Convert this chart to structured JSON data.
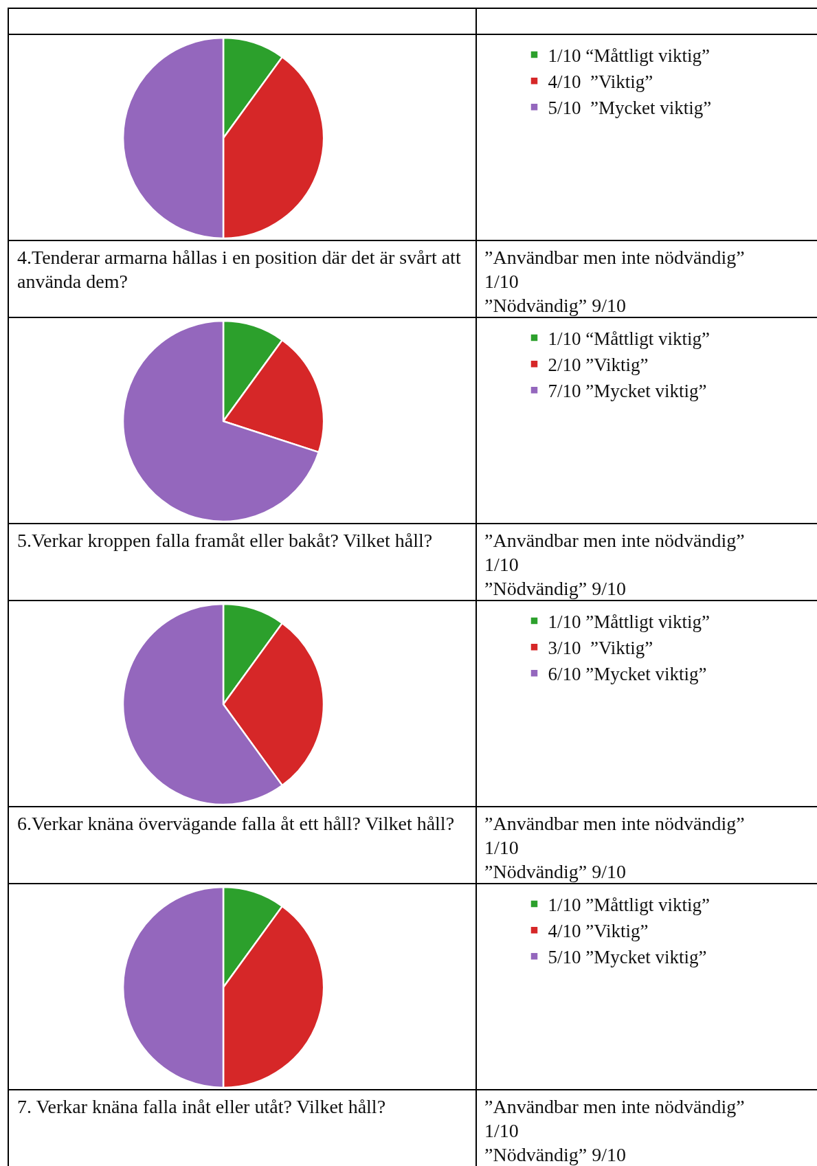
{
  "chart_data": [
    {
      "type": "pie",
      "categories": [
        "1/10 “Måttligt viktig”",
        "4/10  ”Viktig”",
        "5/10  ”Mycket viktig”"
      ],
      "values": [
        10,
        40,
        50
      ],
      "colors": [
        "#2ca02c",
        "#d62728",
        "#9467bd"
      ],
      "legend": "right"
    },
    {
      "type": "other",
      "annotations": [
        "4.Tenderar armarna hållas i en position där det är svårt att använda dem?",
        "”Användbar men inte nödvändig”",
        "1/10",
        "”Nödvändig” 9/10"
      ]
    },
    {
      "type": "pie",
      "categories": [
        "1/10 “Måttligt viktig”",
        "2/10 ”Viktig”",
        "7/10 ”Mycket viktig”"
      ],
      "values": [
        10,
        20,
        70
      ],
      "colors": [
        "#2ca02c",
        "#d62728",
        "#9467bd"
      ],
      "legend": "right"
    },
    {
      "type": "other",
      "annotations": [
        "5.Verkar kroppen falla framåt eller bakåt? Vilket håll?",
        "”Användbar men inte nödvändig”",
        "1/10",
        "”Nödvändig” 9/10"
      ]
    },
    {
      "type": "pie",
      "categories": [
        "1/10 ”Måttligt viktig”",
        "3/10  ”Viktig”",
        "6/10 ”Mycket viktig”"
      ],
      "values": [
        10,
        30,
        60
      ],
      "colors": [
        "#2ca02c",
        "#d62728",
        "#9467bd"
      ],
      "legend": "right"
    },
    {
      "type": "other",
      "annotations": [
        "6.Verkar knäna övervägande falla åt ett håll? Vilket håll?",
        "”Användbar men inte nödvändig”",
        "1/10",
        "”Nödvändig” 9/10"
      ]
    },
    {
      "type": "pie",
      "categories": [
        "1/10 ”Måttligt viktig”",
        "4/10 ”Viktig”",
        "5/10 ”Mycket viktig”"
      ],
      "values": [
        10,
        40,
        50
      ],
      "colors": [
        "#2ca02c",
        "#d62728",
        "#9467bd"
      ],
      "legend": "right"
    },
    {
      "type": "other",
      "annotations": [
        "7. Verkar knäna falla inåt eller utåt? Vilket håll?",
        "”Användbar men inte nödvändig”",
        "1/10",
        "”Nödvändig” 9/10"
      ]
    }
  ]
}
